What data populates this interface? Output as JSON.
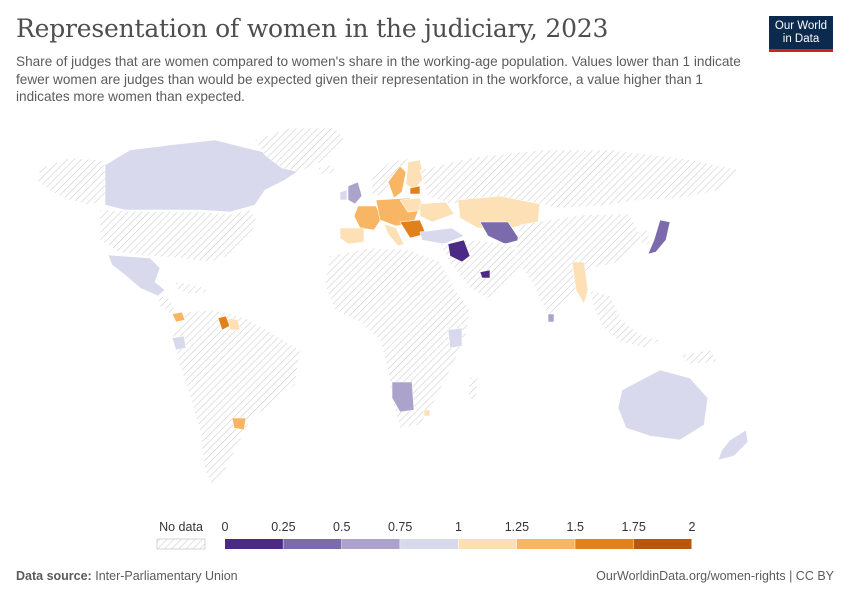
{
  "header": {
    "title": "Representation of women in the judiciary, 2023",
    "subtitle": "Share of judges that are women compared to women's share in the working-age population. Values lower than 1 indicate fewer women are judges than would be expected given their representation in the workforce, a value higher than 1 indicates more women than expected."
  },
  "logo": {
    "line1": "Our World",
    "line2": "in Data"
  },
  "legend": {
    "no_data_label": "No data",
    "ticks": [
      "0",
      "0.25",
      "0.5",
      "0.75",
      "1",
      "1.25",
      "1.5",
      "1.75",
      "2"
    ],
    "colors": [
      "#4b2a86",
      "#7b6aac",
      "#aca3cc",
      "#d8d9ec",
      "#fde0b5",
      "#f8b665",
      "#e1811c",
      "#b9570d"
    ]
  },
  "footer": {
    "source_label": "Data source:",
    "source_value": "Inter-Parliamentary Union",
    "url": "OurWorldinData.org/women-rights | CC BY"
  },
  "chart_data": {
    "type": "choropleth",
    "legend_placement": "bottom-center",
    "bins": [
      0,
      0.25,
      0.5,
      0.75,
      1,
      1.25,
      1.5,
      1.75,
      2
    ],
    "regions": [
      {
        "name": "Canada",
        "bin": 3
      },
      {
        "name": "Mexico",
        "bin": 3
      },
      {
        "name": "Guyana",
        "bin": 6
      },
      {
        "name": "Suriname",
        "bin": 4
      },
      {
        "name": "Ecuador",
        "bin": 3
      },
      {
        "name": "Uruguay",
        "bin": 5
      },
      {
        "name": "United Kingdom",
        "bin": 2
      },
      {
        "name": "France",
        "bin": 5
      },
      {
        "name": "Spain",
        "bin": 4
      },
      {
        "name": "Sweden",
        "bin": 5
      },
      {
        "name": "Finland",
        "bin": 4
      },
      {
        "name": "Poland",
        "bin": 4
      },
      {
        "name": "Latvia",
        "bin": 6
      },
      {
        "name": "Ukraine",
        "bin": 4
      },
      {
        "name": "Turkey",
        "bin": 3
      },
      {
        "name": "Kazakhstan",
        "bin": 4
      },
      {
        "name": "Uzbekistan",
        "bin": 1
      },
      {
        "name": "Iraq",
        "bin": 0
      },
      {
        "name": "United Arab Emirates",
        "bin": 0
      },
      {
        "name": "Myanmar",
        "bin": 4
      },
      {
        "name": "Japan",
        "bin": 1
      },
      {
        "name": "Kenya",
        "bin": 3
      },
      {
        "name": "Namibia",
        "bin": 2
      },
      {
        "name": "Australia",
        "bin": 3
      },
      {
        "name": "New Zealand",
        "bin": 3
      }
    ]
  }
}
